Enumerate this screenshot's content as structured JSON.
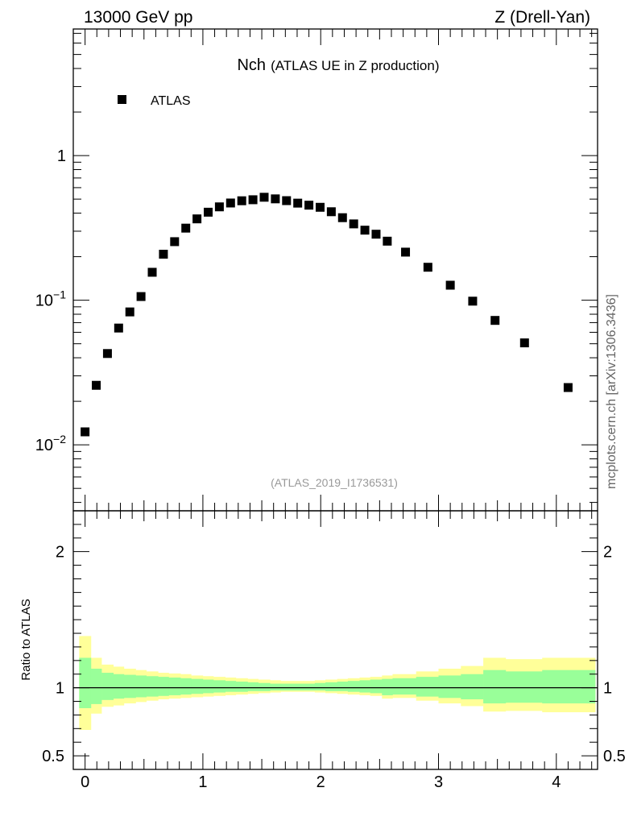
{
  "header": {
    "left": "13000 GeV pp",
    "right": "Z (Drell-Yan)"
  },
  "side_label": "mcplots.cern.ch [arXiv:1306.3436]",
  "chart_data": [
    {
      "type": "scatter",
      "panel": "main",
      "title_main": "Nch",
      "title_sub": "(ATLAS UE in Z production)",
      "watermark": "(ATLAS_2019_I1736531)",
      "yscale": "log",
      "xlim": [
        -0.1,
        4.35
      ],
      "ylim": [
        0.0035,
        7.5
      ],
      "ytick_labels": [
        {
          "value": 1,
          "label": "1"
        },
        {
          "value": 0.1,
          "label": "10",
          "exp": "−1"
        },
        {
          "value": 0.01,
          "label": "10",
          "exp": "−2"
        }
      ],
      "legend": {
        "position": "top-left",
        "entries": [
          "ATLAS"
        ]
      },
      "series": [
        {
          "name": "ATLAS",
          "marker": "square",
          "color": "#000000",
          "x": [
            0.0,
            0.095,
            0.19,
            0.285,
            0.38,
            0.475,
            0.57,
            0.665,
            0.76,
            0.855,
            0.95,
            1.045,
            1.14,
            1.235,
            1.33,
            1.425,
            1.52,
            1.615,
            1.71,
            1.805,
            1.9,
            1.995,
            2.09,
            2.185,
            2.28,
            2.375,
            2.47,
            2.565,
            2.72,
            2.91,
            3.1,
            3.29,
            3.48,
            3.73,
            4.1
          ],
          "y": [
            0.0123,
            0.0258,
            0.0428,
            0.0642,
            0.083,
            0.106,
            0.156,
            0.208,
            0.254,
            0.315,
            0.365,
            0.406,
            0.442,
            0.47,
            0.487,
            0.495,
            0.515,
            0.502,
            0.488,
            0.469,
            0.454,
            0.439,
            0.409,
            0.372,
            0.337,
            0.305,
            0.286,
            0.256,
            0.215,
            0.169,
            0.127,
            0.0985,
            0.0725,
            0.0507,
            0.0249
          ]
        }
      ]
    },
    {
      "type": "area",
      "panel": "ratio",
      "ylabel": "Ratio to ATLAS",
      "xlabel": "",
      "xlim": [
        -0.1,
        4.35
      ],
      "ylim": [
        0.4,
        2.3
      ],
      "xtick_labels": [
        "0",
        "1",
        "2",
        "3",
        "4"
      ],
      "ytick_labels": [
        "0.5",
        "1",
        "2"
      ],
      "reference_line": 1,
      "bin_edges": [
        -0.05,
        0.05,
        0.14,
        0.24,
        0.33,
        0.43,
        0.52,
        0.62,
        0.71,
        0.81,
        0.9,
        1.0,
        1.09,
        1.19,
        1.28,
        1.38,
        1.47,
        1.57,
        1.66,
        1.76,
        1.85,
        1.95,
        2.04,
        2.14,
        2.23,
        2.33,
        2.42,
        2.52,
        2.61,
        2.81,
        3.0,
        3.19,
        3.38,
        3.57,
        3.88,
        4.33
      ],
      "bands": [
        {
          "name": "total uncertainty",
          "color": "#ffff99",
          "upper": [
            1.38,
            1.22,
            1.17,
            1.155,
            1.14,
            1.13,
            1.12,
            1.11,
            1.105,
            1.1,
            1.09,
            1.085,
            1.08,
            1.075,
            1.07,
            1.065,
            1.06,
            1.055,
            1.05,
            1.05,
            1.05,
            1.055,
            1.06,
            1.065,
            1.07,
            1.075,
            1.08,
            1.09,
            1.1,
            1.12,
            1.14,
            1.16,
            1.22,
            1.21,
            1.22,
            1.22
          ],
          "lower": [
            0.69,
            0.81,
            0.86,
            0.87,
            0.885,
            0.895,
            0.905,
            0.915,
            0.92,
            0.925,
            0.93,
            0.935,
            0.94,
            0.945,
            0.95,
            0.955,
            0.96,
            0.965,
            0.97,
            0.97,
            0.97,
            0.965,
            0.96,
            0.955,
            0.95,
            0.945,
            0.94,
            0.92,
            0.925,
            0.905,
            0.885,
            0.865,
            0.825,
            0.83,
            0.82,
            0.82
          ]
        },
        {
          "name": "statistical uncertainty",
          "color": "#99ff99",
          "upper": [
            1.22,
            1.14,
            1.11,
            1.1,
            1.095,
            1.09,
            1.085,
            1.08,
            1.075,
            1.07,
            1.065,
            1.06,
            1.055,
            1.05,
            1.045,
            1.04,
            1.035,
            1.03,
            1.03,
            1.03,
            1.03,
            1.035,
            1.04,
            1.045,
            1.05,
            1.055,
            1.06,
            1.065,
            1.07,
            1.08,
            1.09,
            1.1,
            1.13,
            1.12,
            1.13,
            1.13
          ],
          "lower": [
            0.85,
            0.88,
            0.91,
            0.92,
            0.925,
            0.93,
            0.935,
            0.94,
            0.945,
            0.95,
            0.955,
            0.96,
            0.965,
            0.97,
            0.97,
            0.975,
            0.975,
            0.98,
            0.98,
            0.98,
            0.98,
            0.98,
            0.975,
            0.975,
            0.97,
            0.965,
            0.96,
            0.945,
            0.95,
            0.935,
            0.925,
            0.915,
            0.885,
            0.89,
            0.885,
            0.885
          ]
        }
      ]
    }
  ]
}
